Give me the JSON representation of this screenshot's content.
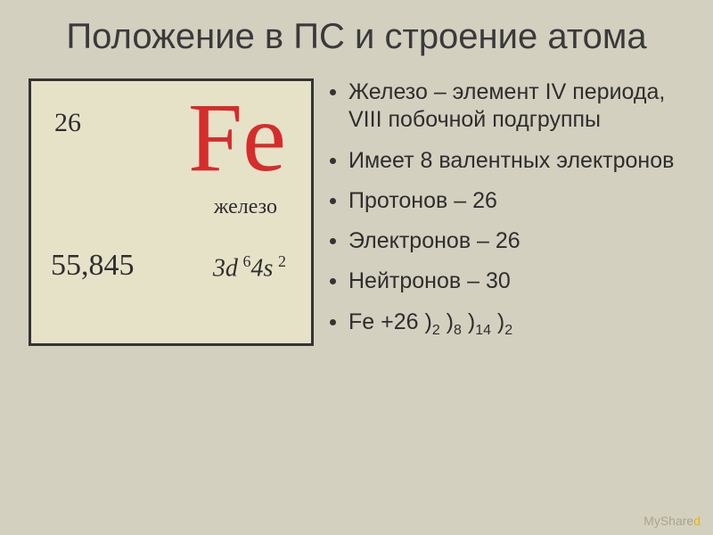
{
  "title": "Положение в ПС и строение атома",
  "element_box": {
    "symbol": "Fe",
    "symbol_color": "#d62c2c",
    "atomic_number": "26",
    "name": "железо",
    "atomic_mass": "55,845",
    "electron_config_html": "3<i>d</i>&#8239;<sup>6</sup>4<i>s</i>&#8239;<sup>2</sup>",
    "background": "#e6e2c8",
    "border": "#333333",
    "text_color": "#2e2e2e"
  },
  "bullets": [
    "Железо – элемент IV периода, VIII побочной подгруппы",
    "Имеет 8 валентных электронов",
    "Протонов – 26",
    "Электронов – 26",
    "Нейтронов – 30"
  ],
  "shell_line": {
    "prefix": "Fe  +26 ",
    "shells": [
      2,
      8,
      14,
      2
    ]
  },
  "page_bg": "#d4d0c0",
  "watermark": {
    "text1": "MyShare",
    "text2": "d"
  }
}
